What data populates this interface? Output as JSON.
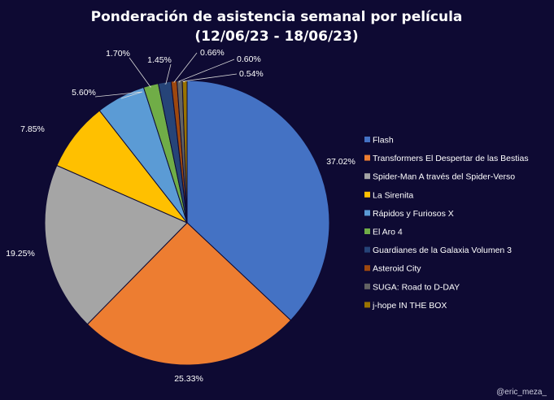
{
  "chart_data": {
    "type": "pie",
    "title": [
      "Ponderación de asistencia semanal por película",
      "(12/06/23 - 18/06/23)"
    ],
    "legend_position": "right",
    "slices": [
      {
        "label": "Flash",
        "value": 37.02,
        "display": "37.02%",
        "color": "#4472c4"
      },
      {
        "label": "Transformers El Despertar de las Bestias",
        "value": 25.33,
        "display": "25.33%",
        "color": "#ed7d31"
      },
      {
        "label": "Spider-Man A través del Spider-Verso",
        "value": 19.25,
        "display": "19.25%",
        "color": "#a5a5a5"
      },
      {
        "label": "La Sirenita",
        "value": 7.85,
        "display": "7.85%",
        "color": "#ffc000"
      },
      {
        "label": "Rápidos y Furiosos X",
        "value": 5.6,
        "display": "5.60%",
        "color": "#5b9bd5"
      },
      {
        "label": "El Aro 4",
        "value": 1.7,
        "display": "1.70%",
        "color": "#70ad47"
      },
      {
        "label": "Guardianes de la Galaxia Volumen 3",
        "value": 1.45,
        "display": "1.45%",
        "color": "#264478"
      },
      {
        "label": "Asteroid City",
        "value": 0.66,
        "display": "0.66%",
        "color": "#9e480e"
      },
      {
        "label": "SUGA: Road to D-DAY",
        "value": 0.6,
        "display": "0.60%",
        "color": "#636363"
      },
      {
        "label": "j-hope IN THE BOX",
        "value": 0.54,
        "display": "0.54%",
        "color": "#997300"
      }
    ]
  },
  "watermark": "@eric_meza_"
}
